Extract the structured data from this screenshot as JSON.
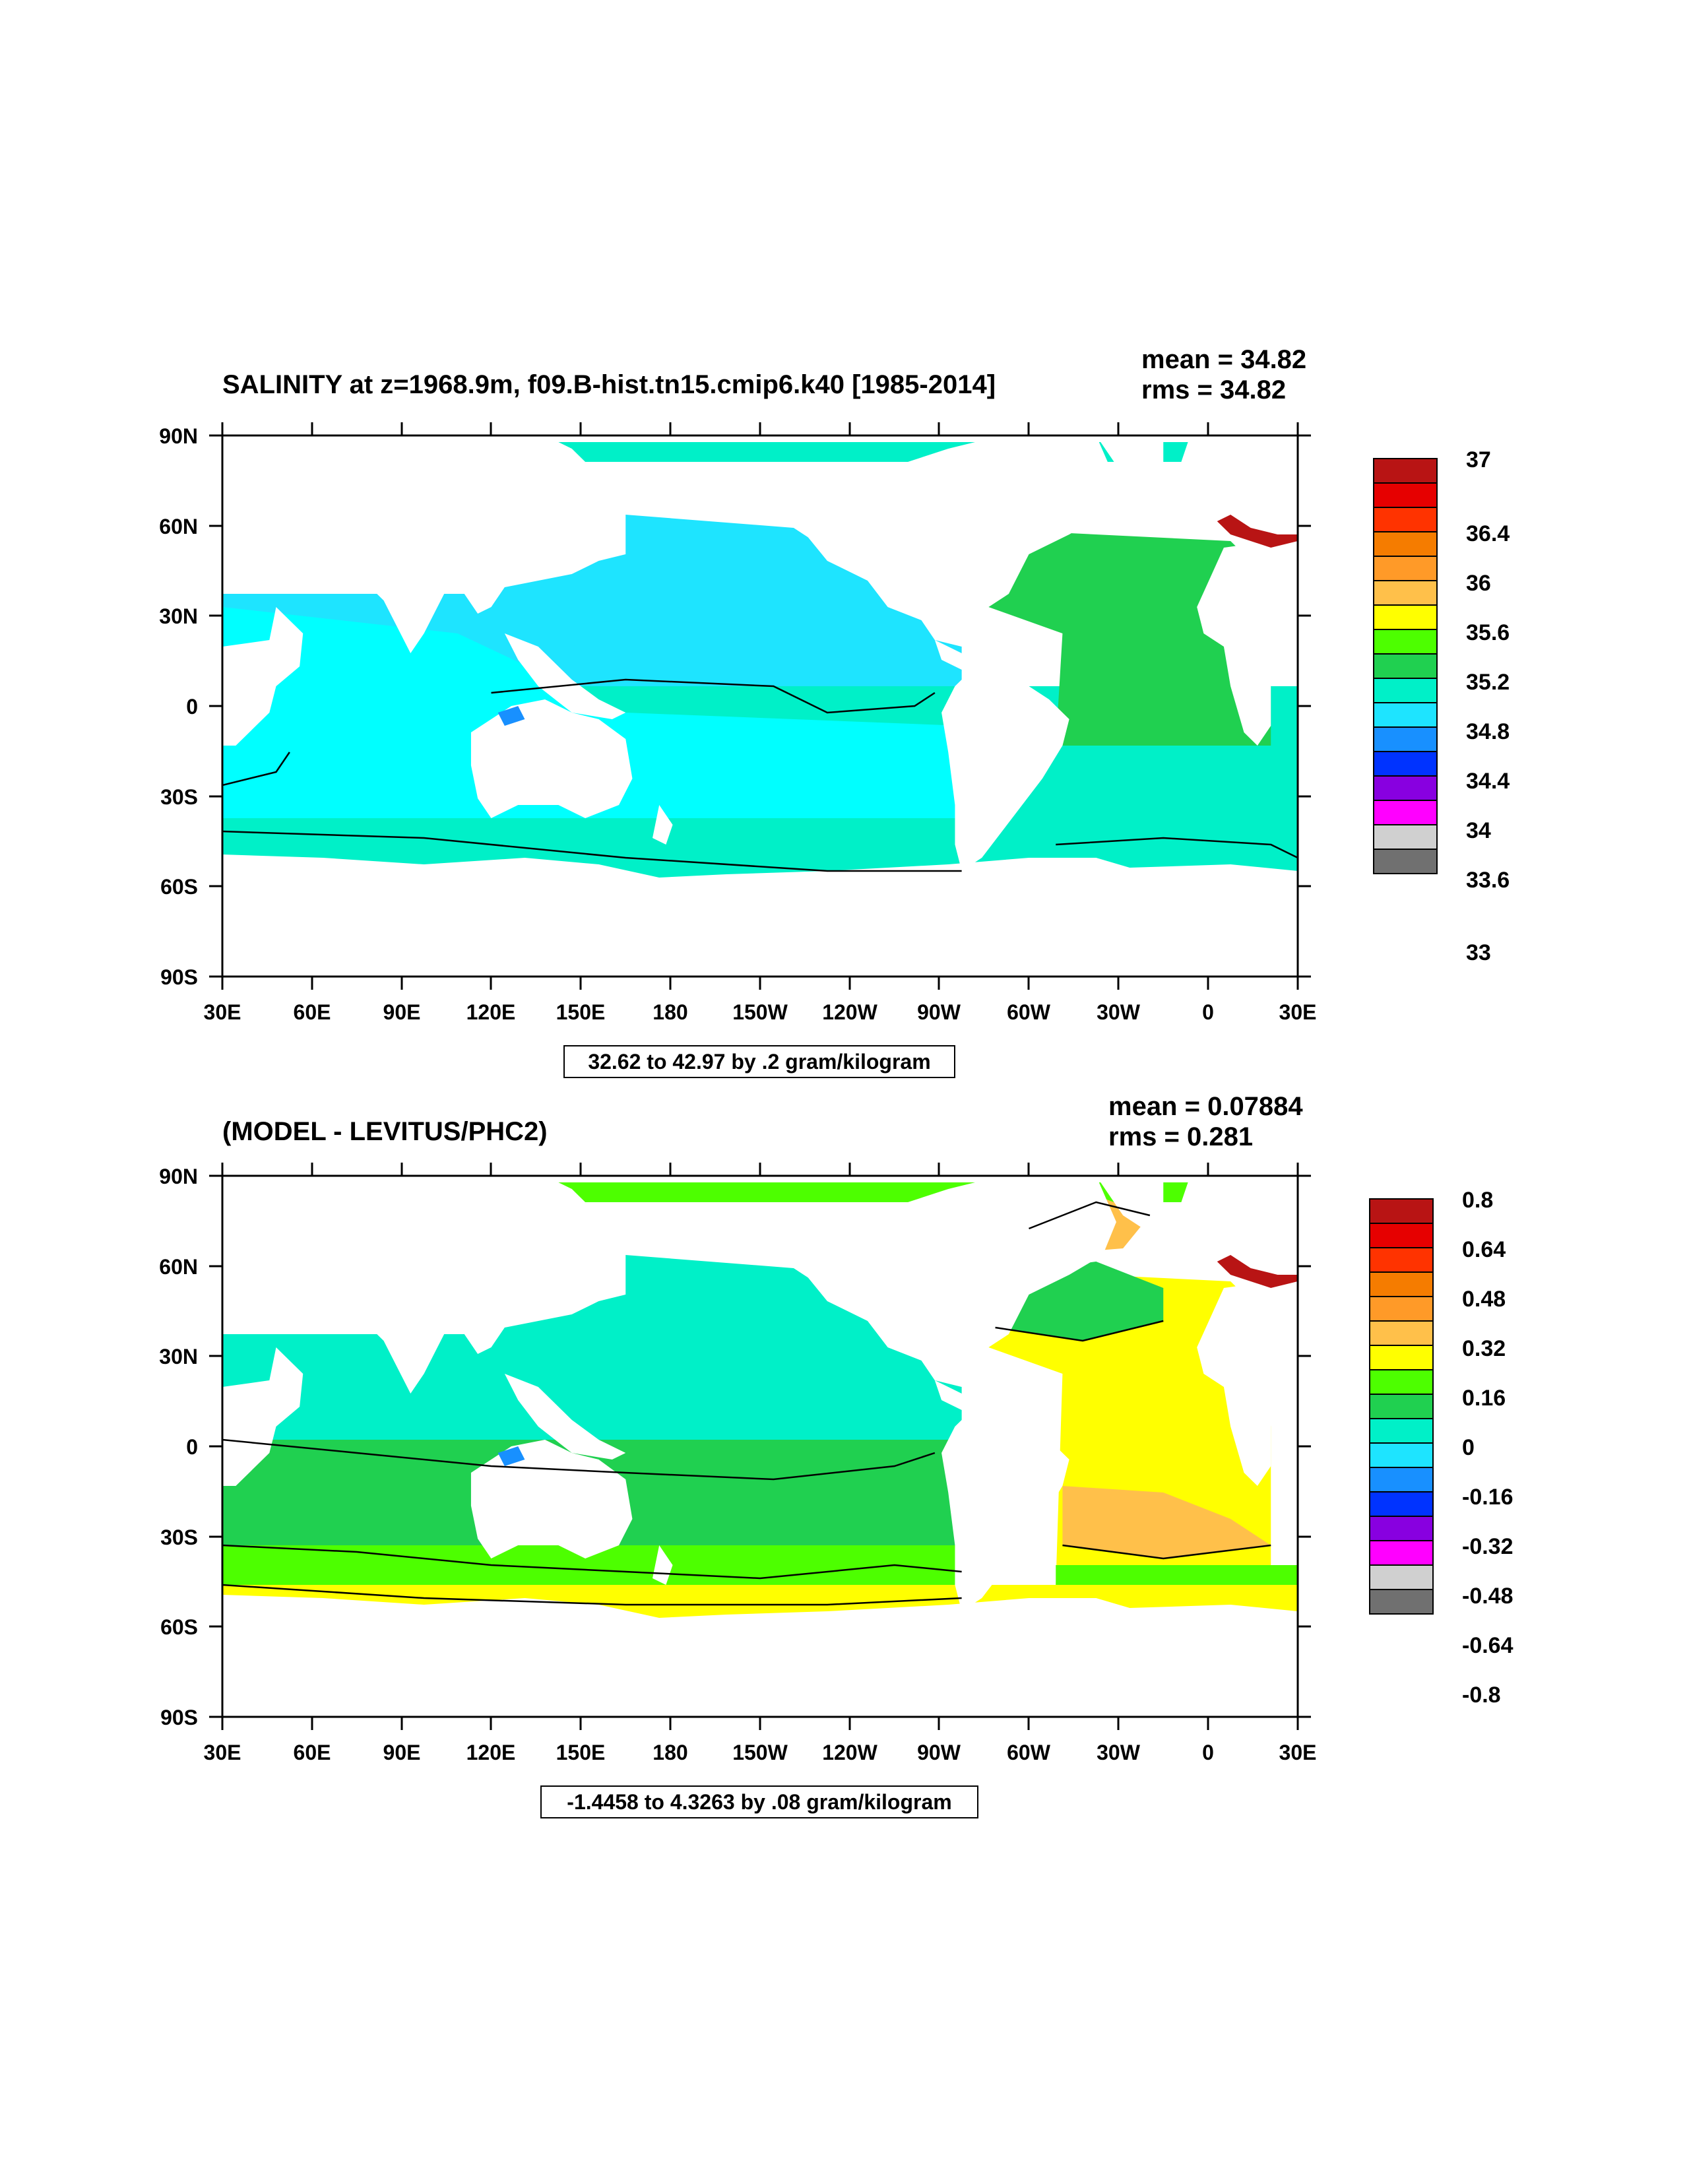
{
  "panels": [
    {
      "id": "salinity",
      "title": "SALINITY at z=1968.9m, f09.B-hist.tn15.cmip6.k40 [1985-2014]",
      "mean_label": "mean = 34.82",
      "rms_label": "rms = 34.82",
      "range_label": "32.62 to 42.97 by .2 gram/kilogram",
      "colorbar_labels": [
        "37",
        "36.4",
        "36",
        "35.6",
        "35.2",
        "34.8",
        "34.4",
        "34",
        "33.6",
        "33"
      ],
      "colors": [
        "#b81414",
        "#e60000",
        "#ff3300",
        "#f57c00",
        "#ff9a28",
        "#ffc04a",
        "#ffff00",
        "#4dff00",
        "#20d050",
        "#00f0c8",
        "#1ee4ff",
        "#1890ff",
        "#0033ff",
        "#8800e0",
        "#ff00ff",
        "#d0d0d0",
        "#707070"
      ]
    },
    {
      "id": "difference",
      "title": "(MODEL - LEVITUS/PHC2)",
      "mean_label": "mean = 0.07884",
      "rms_label": "rms = 0.281",
      "range_label": "-1.4458 to 4.3263 by .08 gram/kilogram",
      "colorbar_labels": [
        "0.8",
        "0.64",
        "0.48",
        "0.32",
        "0.16",
        "0",
        "-0.16",
        "-0.32",
        "-0.48",
        "-0.64",
        "-0.8"
      ],
      "colors": [
        "#b81414",
        "#e60000",
        "#ff3300",
        "#f57c00",
        "#ff9a28",
        "#ffc04a",
        "#ffff00",
        "#4dff00",
        "#20d050",
        "#00f0c8",
        "#1ee4ff",
        "#1890ff",
        "#0033ff",
        "#8800e0",
        "#ff00ff",
        "#d0d0d0",
        "#707070"
      ]
    }
  ],
  "lon_labels": [
    "30E",
    "60E",
    "90E",
    "120E",
    "150E",
    "180",
    "150W",
    "120W",
    "90W",
    "60W",
    "30W",
    "0",
    "30E"
  ],
  "lat_labels": [
    "90N",
    "60N",
    "30N",
    "0",
    "30S",
    "60S",
    "90S"
  ]
}
